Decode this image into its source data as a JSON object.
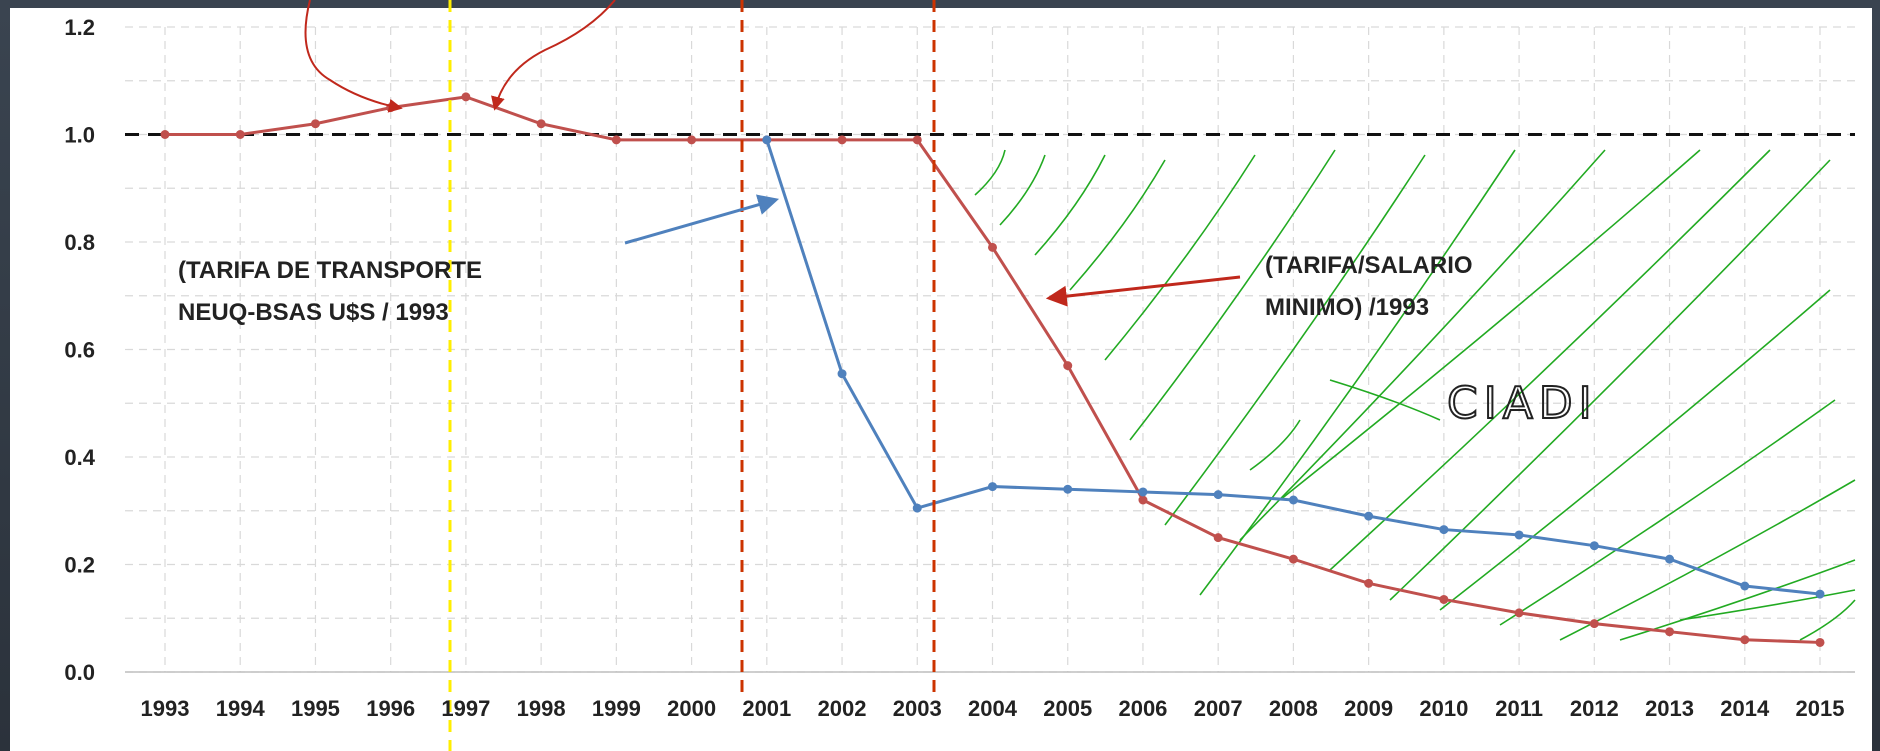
{
  "chart_data": {
    "type": "line",
    "x": [
      "1993",
      "1994",
      "1995",
      "1996",
      "1997",
      "1998",
      "1999",
      "2000",
      "2001",
      "2002",
      "2003",
      "2004",
      "2005",
      "2006",
      "2007",
      "2008",
      "2009",
      "2010",
      "2011",
      "2012",
      "2013",
      "2014",
      "2015"
    ],
    "ylim": [
      0.0,
      1.2
    ],
    "yticks": [
      "0.0",
      "0.2",
      "0.4",
      "0.6",
      "0.8",
      "1.0",
      "1.2"
    ],
    "grid": true,
    "series": [
      {
        "name": "(TARIFA/SALARIO MINIMO) /1993",
        "color": "#c0504d",
        "values": [
          1.0,
          1.0,
          1.02,
          1.05,
          1.07,
          1.02,
          0.99,
          0.99,
          0.99,
          0.99,
          0.99,
          0.79,
          0.57,
          0.32,
          0.25,
          0.21,
          0.165,
          0.135,
          0.11,
          0.09,
          0.075,
          0.06,
          0.055
        ]
      },
      {
        "name": "(TARIFA DE TRANSPORTE NEUQ-BSAS U$S / 1993",
        "color": "#4f81bd",
        "values": [
          null,
          null,
          null,
          null,
          null,
          null,
          null,
          null,
          0.99,
          0.555,
          0.305,
          0.345,
          0.34,
          0.335,
          0.33,
          0.32,
          0.29,
          0.265,
          0.255,
          0.235,
          0.21,
          0.16,
          0.145
        ]
      }
    ],
    "reference_line": 1.0,
    "annotations": {
      "blue_label": [
        "(TARIFA DE TRANSPORTE",
        "NEUQ-BSAS  U$S / 1993"
      ],
      "red_label": [
        "(TARIFA/SALARIO",
        "MINIMO) /1993"
      ],
      "handwritten": "CIADI"
    },
    "colors": {
      "red": "#c0504d",
      "blue": "#4f81bd",
      "marker_red": "#cc3300",
      "marker_yellow": "#ffee00",
      "hatch_green": "#22aa22"
    }
  }
}
